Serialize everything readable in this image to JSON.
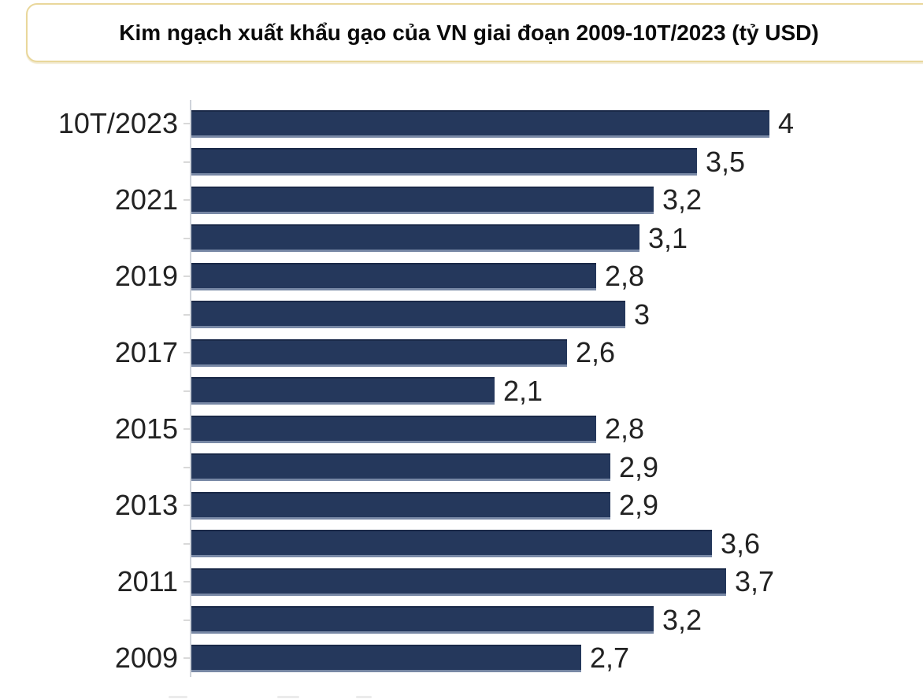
{
  "title": {
    "text": "Kim ngạch xuất khẩu gạo của VN giai đoạn 2009-10T/2023 (tỷ USD)"
  },
  "chart_data": {
    "type": "bar",
    "orientation": "horizontal",
    "title": "Kim ngạch xuất khẩu gạo của VN giai đoạn 2009-10T/2023 (tỷ USD)",
    "unit": "tỷ USD",
    "xlim": [
      0,
      4
    ],
    "bar_color": "#25385c",
    "grid": false,
    "legend": false,
    "bars": [
      {
        "axis_label": "10T/2023",
        "value": 4.0,
        "value_label": "4"
      },
      {
        "axis_label": "",
        "value": 3.5,
        "value_label": "3,5"
      },
      {
        "axis_label": "2021",
        "value": 3.2,
        "value_label": "3,2"
      },
      {
        "axis_label": "",
        "value": 3.1,
        "value_label": "3,1"
      },
      {
        "axis_label": "2019",
        "value": 2.8,
        "value_label": "2,8"
      },
      {
        "axis_label": "",
        "value": 3.0,
        "value_label": "3"
      },
      {
        "axis_label": "2017",
        "value": 2.6,
        "value_label": "2,6"
      },
      {
        "axis_label": "",
        "value": 2.1,
        "value_label": "2,1"
      },
      {
        "axis_label": "2015",
        "value": 2.8,
        "value_label": "2,8"
      },
      {
        "axis_label": "",
        "value": 2.9,
        "value_label": "2,9"
      },
      {
        "axis_label": "2013",
        "value": 2.9,
        "value_label": "2,9"
      },
      {
        "axis_label": "",
        "value": 3.6,
        "value_label": "3,6"
      },
      {
        "axis_label": "2011",
        "value": 3.7,
        "value_label": "3,7"
      },
      {
        "axis_label": "",
        "value": 3.2,
        "value_label": "3,2"
      },
      {
        "axis_label": "2009",
        "value": 2.7,
        "value_label": "2,7"
      }
    ]
  }
}
